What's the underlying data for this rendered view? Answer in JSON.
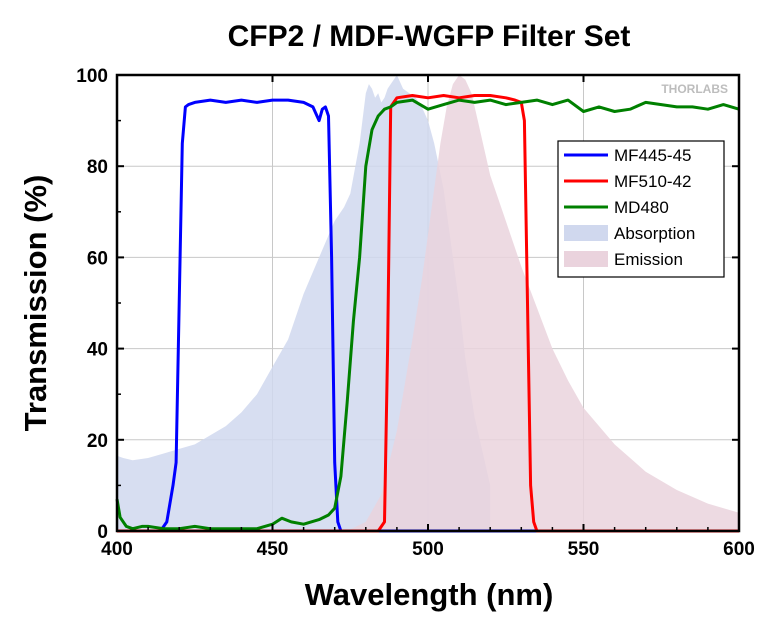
{
  "chart_data": {
    "type": "line",
    "title": "CFP2 / MDF-WGFP Filter Set",
    "xlabel": "Wavelength (nm)",
    "ylabel": "Transmission (%)",
    "xlim": [
      400,
      600
    ],
    "ylim": [
      0,
      100
    ],
    "xticks": [
      400,
      450,
      500,
      550,
      600
    ],
    "yticks": [
      0,
      20,
      40,
      60,
      80,
      100
    ],
    "grid": true,
    "legend_position": "top-right",
    "brand": "THORLABS",
    "series": [
      {
        "name": "MF445-45",
        "kind": "line",
        "color": "#0000ff",
        "x": [
          400,
          410,
          414,
          416,
          418,
          419,
          420,
          421,
          422,
          423,
          425,
          430,
          435,
          440,
          445,
          450,
          455,
          460,
          463,
          465,
          466,
          467,
          468,
          469,
          470,
          471,
          472,
          475,
          490,
          600
        ],
        "y": [
          0,
          0,
          0,
          2,
          10,
          15,
          50,
          85,
          93,
          93.5,
          94,
          94.5,
          94,
          94.5,
          94,
          94.5,
          94.5,
          94,
          93,
          90,
          92.5,
          93,
          91,
          60,
          15,
          2,
          0,
          0,
          0,
          0
        ]
      },
      {
        "name": "MF510-42",
        "kind": "line",
        "color": "#ff0000",
        "x": [
          400,
          484,
          486,
          487,
          488,
          490,
          495,
          500,
          505,
          510,
          515,
          520,
          525,
          528,
          530,
          531,
          532,
          533,
          534,
          535,
          600
        ],
        "y": [
          0,
          0,
          2,
          40,
          93,
          95,
          95.5,
          95,
          95.5,
          95,
          95.5,
          95.5,
          95,
          94.5,
          94,
          90,
          50,
          10,
          2,
          0,
          0
        ]
      },
      {
        "name": "MD480",
        "kind": "line",
        "color": "#008000",
        "x": [
          400,
          401,
          403,
          405,
          408,
          410,
          415,
          420,
          425,
          430,
          435,
          440,
          445,
          450,
          453,
          456,
          460,
          465,
          468,
          470,
          472,
          474,
          476,
          478,
          480,
          482,
          484,
          486,
          488,
          490,
          495,
          500,
          505,
          510,
          515,
          520,
          525,
          530,
          535,
          540,
          545,
          550,
          555,
          560,
          565,
          570,
          575,
          580,
          585,
          590,
          595,
          600
        ],
        "y": [
          7,
          3,
          1,
          0.5,
          1,
          1,
          0.5,
          0.5,
          1,
          0.5,
          0.5,
          0.5,
          0.5,
          1.5,
          2.8,
          2,
          1.5,
          2.5,
          3.5,
          5,
          12,
          28,
          46,
          60,
          80,
          88,
          91,
          92.5,
          93,
          94,
          94.5,
          92.5,
          93.5,
          94.5,
          94,
          94.5,
          93.5,
          94,
          94.5,
          93.5,
          94.5,
          92,
          93,
          92,
          92.5,
          94,
          93.5,
          93,
          93,
          92.5,
          93.5,
          92.5
        ]
      },
      {
        "name": "Absorption",
        "kind": "area",
        "color": "#d0d8ee",
        "x": [
          400,
          402,
          405,
          410,
          415,
          420,
          425,
          430,
          435,
          440,
          445,
          450,
          455,
          460,
          465,
          470,
          473,
          475,
          478,
          480,
          481,
          482,
          483,
          484,
          485,
          486,
          487,
          488,
          489,
          490,
          492,
          494,
          496,
          498,
          500,
          502,
          505,
          508,
          510,
          512,
          515,
          518,
          520,
          520
        ],
        "y": [
          16.5,
          16,
          15.5,
          16,
          17,
          18,
          19,
          21,
          23,
          26,
          30,
          36,
          42,
          52,
          60,
          68,
          71,
          74,
          85,
          96,
          98,
          97,
          95,
          96,
          94,
          95,
          97,
          98,
          99,
          100,
          97,
          96,
          95,
          93,
          90,
          85,
          75,
          60,
          50,
          38,
          25,
          16,
          10,
          0
        ]
      },
      {
        "name": "Emission",
        "kind": "area",
        "color": "#ead3dd",
        "x": [
          474,
          480,
          485,
          490,
          495,
          498,
          500,
          502,
          504,
          506,
          508,
          510,
          512,
          514,
          516,
          518,
          520,
          525,
          530,
          535,
          540,
          545,
          550,
          560,
          570,
          580,
          590,
          600
        ],
        "y": [
          0,
          2,
          8,
          22,
          42,
          55,
          65,
          75,
          85,
          93,
          98,
          100,
          99,
          96,
          90,
          84,
          78,
          68,
          58,
          49,
          40,
          33,
          27,
          19,
          13,
          9,
          6,
          4
        ]
      }
    ]
  }
}
